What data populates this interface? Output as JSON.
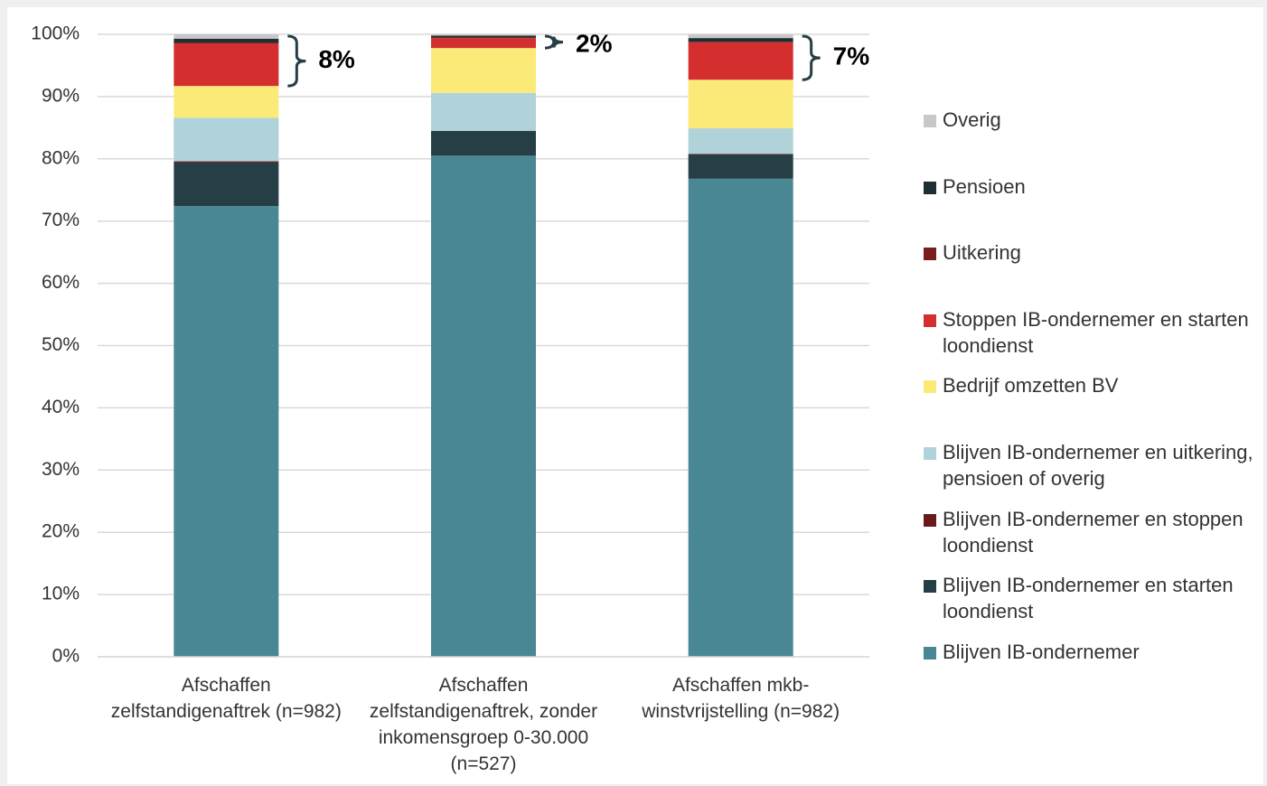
{
  "chart_data": {
    "type": "bar",
    "stacked": true,
    "categories": [
      "Afschaffen zelfstandigenaftrek (n=982)",
      "Afschaffen zelfstandigenaftrek, zonder inkomensgroep 0-30.000 (n=527)",
      "Afschaffen mkb-winstvrijstelling (n=982)"
    ],
    "series": [
      {
        "name": "Blijven IB-ondernemer",
        "color": "#4a8794",
        "values": [
          72.4,
          80.5,
          76.8
        ]
      },
      {
        "name": "Blijven IB-ondernemer en starten loondienst",
        "color": "#263f47",
        "values": [
          7.0,
          4.0,
          3.9
        ]
      },
      {
        "name": "Blijven IB-ondernemer en stoppen loondienst",
        "color": "#6b1a1a",
        "values": [
          0.2,
          0,
          0.1
        ]
      },
      {
        "name": "Blijven IB-ondernemer en uitkering, pensioen of overig",
        "color": "#b0d2d9",
        "values": [
          7.0,
          6.1,
          4.1
        ]
      },
      {
        "name": "Bedrijf omzetten BV",
        "color": "#fcea78",
        "values": [
          5.1,
          7.2,
          7.8
        ]
      },
      {
        "name": "Stoppen IB-ondernemer en starten loondienst",
        "color": "#d42e2e",
        "values": [
          6.8,
          1.6,
          6.0
        ]
      },
      {
        "name": "Uitkering",
        "color": "#7a1d1d",
        "values": [
          0.2,
          0.1,
          0.1
        ]
      },
      {
        "name": "Pensioen",
        "color": "#1f2e33",
        "values": [
          0.6,
          0.3,
          0.6
        ]
      },
      {
        "name": "Overig",
        "color": "#c8c8c8",
        "values": [
          0.7,
          0.2,
          0.6
        ]
      }
    ],
    "annotations": [
      "8%",
      "2%",
      "7%"
    ],
    "ylim": [
      0,
      100
    ],
    "yticks": [
      {
        "value": 0,
        "label": "0%"
      },
      {
        "value": 10,
        "label": "10%"
      },
      {
        "value": 20,
        "label": "20%"
      },
      {
        "value": 30,
        "label": "30%"
      },
      {
        "value": 40,
        "label": "40%"
      },
      {
        "value": 50,
        "label": "50%"
      },
      {
        "value": 60,
        "label": "60%"
      },
      {
        "value": 70,
        "label": "70%"
      },
      {
        "value": 80,
        "label": "80%"
      },
      {
        "value": 90,
        "label": "90%"
      },
      {
        "value": 100,
        "label": "100%"
      }
    ],
    "grid": true,
    "legend": "right"
  }
}
